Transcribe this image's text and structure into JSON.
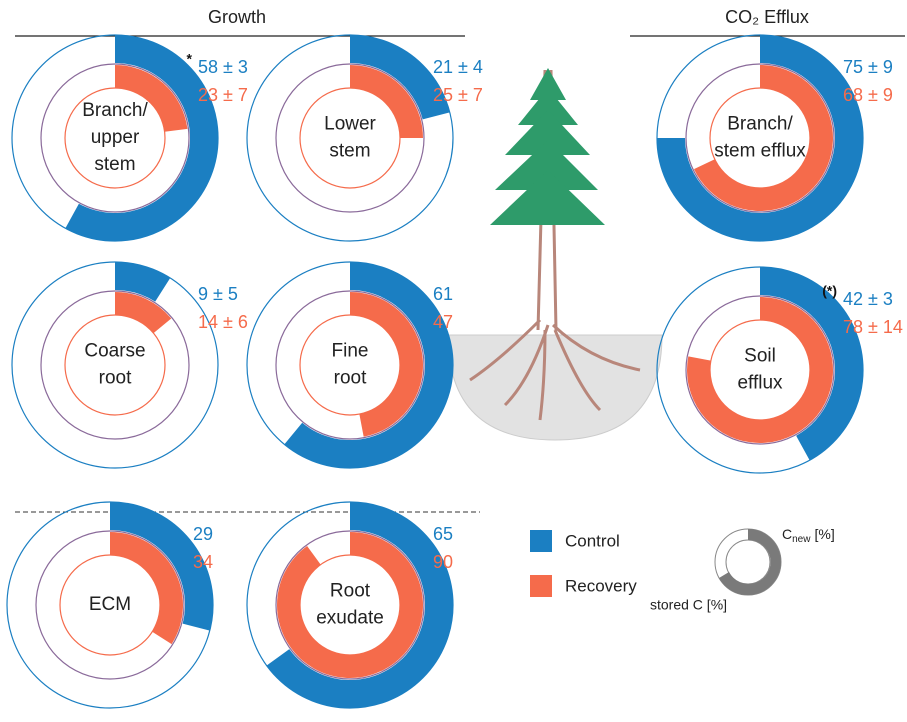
{
  "groups": [
    {
      "title": "Growth"
    },
    {
      "title": "CO₂ Efflux"
    }
  ],
  "legend": {
    "items": [
      {
        "name": "Control",
        "color": "#1b7fc2"
      },
      {
        "name": "Recovery",
        "color": "#f56b4b"
      }
    ]
  },
  "key": {
    "new": "C",
    "new_sub": "new",
    "new_unit": "[%]",
    "stored": "stored C [%]"
  },
  "chart_data": [
    {
      "type": "donut",
      "title": [
        "Branch/",
        "upper",
        "stem"
      ],
      "annotation": "*",
      "control": {
        "value": 58,
        "value_label": "58 ± 3"
      },
      "recovery": {
        "value": 23,
        "value_label": "23 ± 7"
      }
    },
    {
      "type": "donut",
      "title": [
        "Lower",
        "stem"
      ],
      "control": {
        "value": 21,
        "value_label": "21 ± 4"
      },
      "recovery": {
        "value": 25,
        "value_label": "25 ± 7"
      }
    },
    {
      "type": "donut",
      "title": [
        "Coarse",
        "root"
      ],
      "control": {
        "value": 9,
        "value_label": "9 ± 5"
      },
      "recovery": {
        "value": 14,
        "value_label": "14 ± 6"
      }
    },
    {
      "type": "donut",
      "title": [
        "Fine",
        "root"
      ],
      "control": {
        "value": 61
      },
      "recovery": {
        "value": 47
      }
    },
    {
      "type": "donut",
      "title": [
        "ECM"
      ],
      "control": {
        "value": 29
      },
      "recovery": {
        "value": 34
      }
    },
    {
      "type": "donut",
      "title": [
        "Root",
        "exudate"
      ],
      "control": {
        "value": 65
      },
      "recovery": {
        "value": 90
      }
    },
    {
      "type": "donut",
      "title": [
        "Branch/",
        "stem efflux"
      ],
      "control": {
        "value": 75,
        "value_label": "75 ± 9"
      },
      "recovery": {
        "value": 68,
        "value_label": "68 ± 9"
      }
    },
    {
      "type": "donut",
      "title": [
        "Soil",
        "efflux"
      ],
      "annotation": "(*)",
      "control": {
        "value": 42,
        "value_label": "42 ± 3"
      },
      "recovery": {
        "value": 78,
        "value_label": "78 ± 14"
      }
    }
  ]
}
